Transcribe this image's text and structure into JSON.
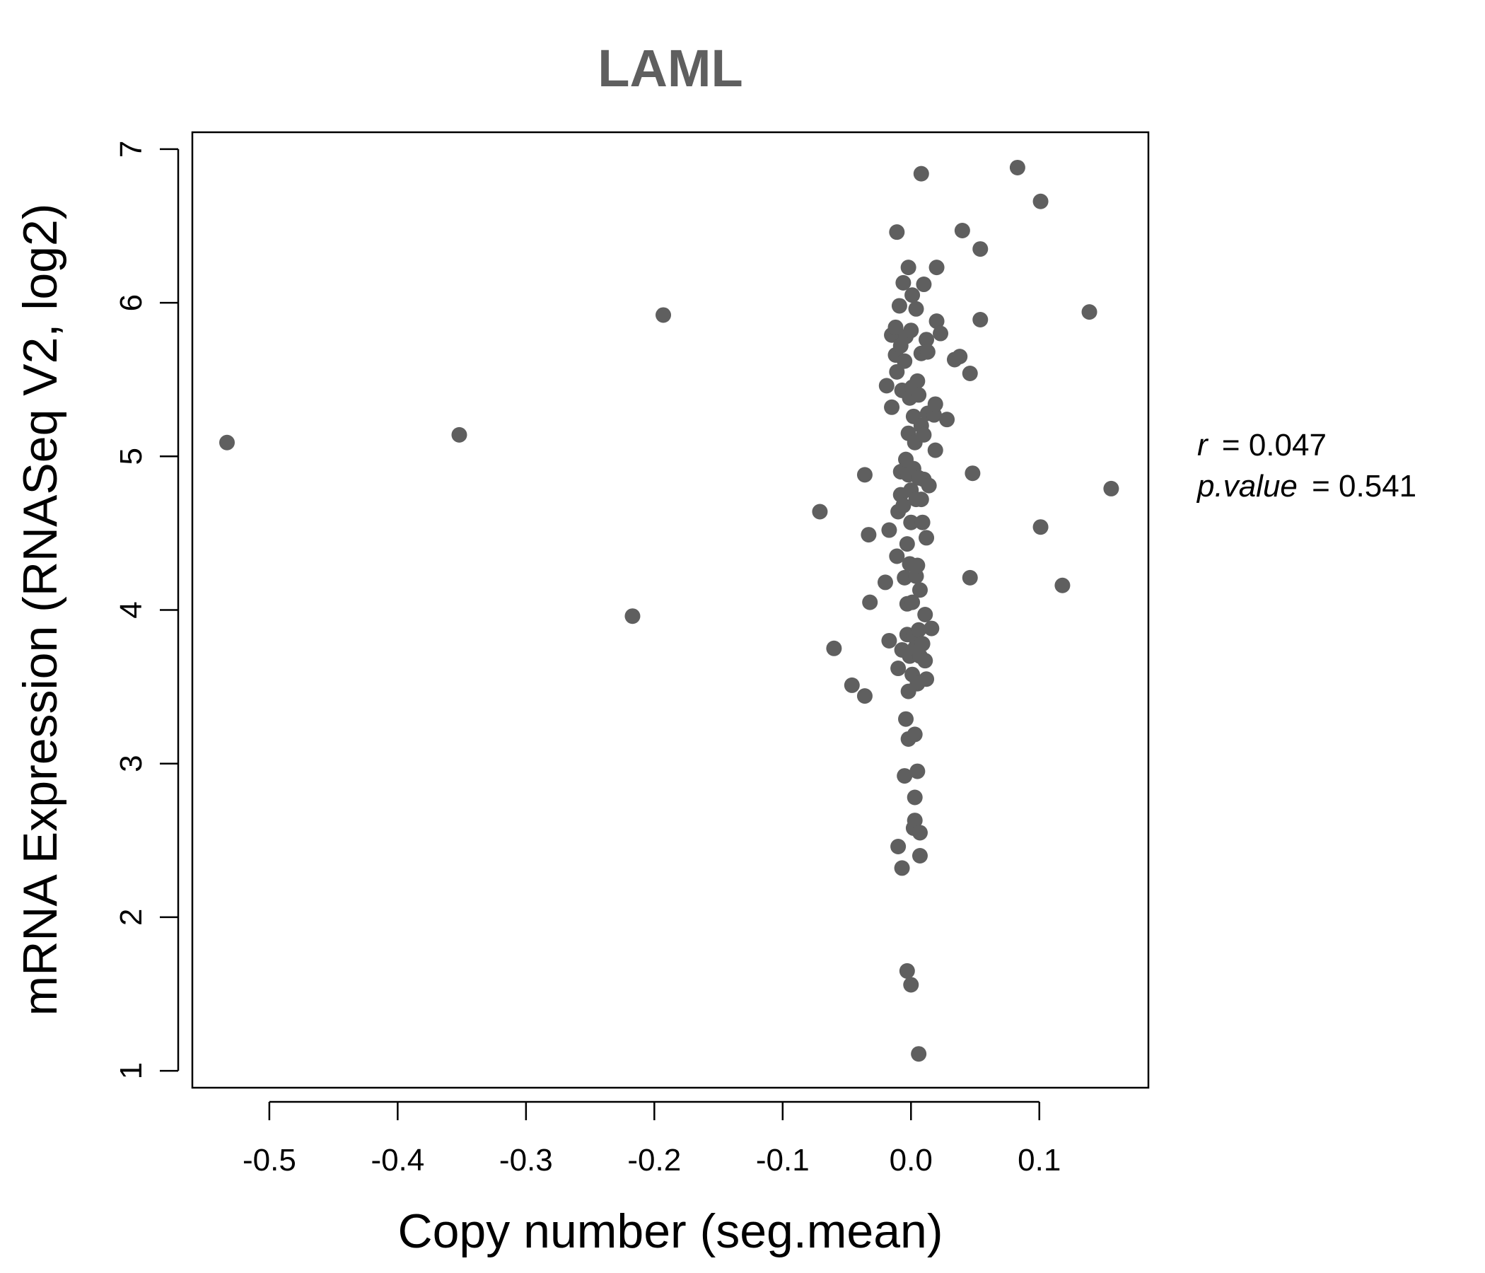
{
  "chart_data": {
    "type": "scatter",
    "title": "LAML",
    "xlabel": "Copy number (seg.mean)",
    "ylabel": "mRNA Expression (RNASeq V2, log2)",
    "xlim": [
      -0.56,
      0.185
    ],
    "ylim": [
      0.89,
      7.11
    ],
    "x_ticks": [
      -0.5,
      -0.4,
      -0.3,
      -0.2,
      -0.1,
      0.0,
      0.1
    ],
    "x_tick_labels": [
      "-0.5",
      "-0.4",
      "-0.3",
      "-0.2",
      "-0.1",
      "0.0",
      "0.1"
    ],
    "y_ticks": [
      1,
      2,
      3,
      4,
      5,
      6,
      7
    ],
    "y_tick_labels": [
      "1",
      "2",
      "3",
      "4",
      "5",
      "6",
      "7"
    ],
    "grid": false,
    "point_color": "#5f5f5f",
    "stats": {
      "r_label": "r",
      "r_value": "0.047",
      "p_label": "p.value",
      "p_value": "0.541"
    },
    "points": [
      {
        "x": -0.533,
        "y": 5.09
      },
      {
        "x": -0.352,
        "y": 5.14
      },
      {
        "x": -0.217,
        "y": 3.96
      },
      {
        "x": -0.193,
        "y": 5.92
      },
      {
        "x": -0.071,
        "y": 4.64
      },
      {
        "x": -0.06,
        "y": 3.75
      },
      {
        "x": -0.046,
        "y": 3.51
      },
      {
        "x": -0.036,
        "y": 3.44
      },
      {
        "x": -0.036,
        "y": 4.88
      },
      {
        "x": -0.033,
        "y": 4.49
      },
      {
        "x": -0.032,
        "y": 4.05
      },
      {
        "x": -0.02,
        "y": 4.18
      },
      {
        "x": -0.019,
        "y": 5.46
      },
      {
        "x": -0.017,
        "y": 3.8
      },
      {
        "x": -0.017,
        "y": 4.52
      },
      {
        "x": -0.015,
        "y": 5.32
      },
      {
        "x": -0.015,
        "y": 5.79
      },
      {
        "x": -0.012,
        "y": 5.84
      },
      {
        "x": -0.012,
        "y": 5.66
      },
      {
        "x": -0.011,
        "y": 4.35
      },
      {
        "x": -0.011,
        "y": 5.55
      },
      {
        "x": -0.011,
        "y": 6.46
      },
      {
        "x": -0.01,
        "y": 4.64
      },
      {
        "x": -0.01,
        "y": 2.46
      },
      {
        "x": -0.01,
        "y": 3.62
      },
      {
        "x": -0.009,
        "y": 5.98
      },
      {
        "x": -0.008,
        "y": 4.75
      },
      {
        "x": -0.008,
        "y": 4.9
      },
      {
        "x": -0.008,
        "y": 5.72
      },
      {
        "x": -0.007,
        "y": 5.43
      },
      {
        "x": -0.007,
        "y": 3.74
      },
      {
        "x": -0.007,
        "y": 2.32
      },
      {
        "x": -0.006,
        "y": 6.13
      },
      {
        "x": -0.006,
        "y": 4.68
      },
      {
        "x": -0.005,
        "y": 5.62
      },
      {
        "x": -0.005,
        "y": 4.21
      },
      {
        "x": -0.005,
        "y": 2.92
      },
      {
        "x": -0.004,
        "y": 4.98
      },
      {
        "x": -0.004,
        "y": 3.29
      },
      {
        "x": -0.004,
        "y": 5.78
      },
      {
        "x": -0.003,
        "y": 4.04
      },
      {
        "x": -0.003,
        "y": 4.43
      },
      {
        "x": -0.003,
        "y": 1.65
      },
      {
        "x": -0.003,
        "y": 3.84
      },
      {
        "x": -0.002,
        "y": 5.15
      },
      {
        "x": -0.002,
        "y": 3.47
      },
      {
        "x": -0.002,
        "y": 3.16
      },
      {
        "x": -0.002,
        "y": 4.88
      },
      {
        "x": -0.002,
        "y": 6.23
      },
      {
        "x": -0.001,
        "y": 5.38
      },
      {
        "x": -0.001,
        "y": 4.3
      },
      {
        "x": -0.001,
        "y": 3.7
      },
      {
        "x": 0.0,
        "y": 5.82
      },
      {
        "x": 0.0,
        "y": 4.57
      },
      {
        "x": 0.0,
        "y": 1.56
      },
      {
        "x": 0.0,
        "y": 4.78
      },
      {
        "x": 0.001,
        "y": 5.45
      },
      {
        "x": 0.001,
        "y": 4.05
      },
      {
        "x": 0.001,
        "y": 3.58
      },
      {
        "x": 0.001,
        "y": 6.05
      },
      {
        "x": 0.002,
        "y": 5.26
      },
      {
        "x": 0.002,
        "y": 3.83
      },
      {
        "x": 0.002,
        "y": 2.58
      },
      {
        "x": 0.002,
        "y": 4.92
      },
      {
        "x": 0.003,
        "y": 3.19
      },
      {
        "x": 0.003,
        "y": 5.09
      },
      {
        "x": 0.003,
        "y": 3.75
      },
      {
        "x": 0.003,
        "y": 2.63
      },
      {
        "x": 0.003,
        "y": 2.78
      },
      {
        "x": 0.004,
        "y": 4.72
      },
      {
        "x": 0.004,
        "y": 5.96
      },
      {
        "x": 0.004,
        "y": 4.22
      },
      {
        "x": 0.005,
        "y": 3.52
      },
      {
        "x": 0.005,
        "y": 2.95
      },
      {
        "x": 0.005,
        "y": 4.29
      },
      {
        "x": 0.005,
        "y": 5.49
      },
      {
        "x": 0.006,
        "y": 3.87
      },
      {
        "x": 0.006,
        "y": 1.11
      },
      {
        "x": 0.006,
        "y": 5.4
      },
      {
        "x": 0.006,
        "y": 4.86
      },
      {
        "x": 0.007,
        "y": 2.4
      },
      {
        "x": 0.007,
        "y": 4.13
      },
      {
        "x": 0.007,
        "y": 3.7
      },
      {
        "x": 0.007,
        "y": 2.55
      },
      {
        "x": 0.008,
        "y": 6.84
      },
      {
        "x": 0.008,
        "y": 5.67
      },
      {
        "x": 0.008,
        "y": 4.72
      },
      {
        "x": 0.008,
        "y": 5.2
      },
      {
        "x": 0.009,
        "y": 3.78
      },
      {
        "x": 0.009,
        "y": 4.57
      },
      {
        "x": 0.01,
        "y": 6.12
      },
      {
        "x": 0.01,
        "y": 4.85
      },
      {
        "x": 0.01,
        "y": 5.14
      },
      {
        "x": 0.011,
        "y": 3.67
      },
      {
        "x": 0.011,
        "y": 3.97
      },
      {
        "x": 0.012,
        "y": 3.55
      },
      {
        "x": 0.012,
        "y": 4.47
      },
      {
        "x": 0.012,
        "y": 5.76
      },
      {
        "x": 0.013,
        "y": 5.28
      },
      {
        "x": 0.013,
        "y": 5.68
      },
      {
        "x": 0.014,
        "y": 4.81
      },
      {
        "x": 0.016,
        "y": 3.88
      },
      {
        "x": 0.018,
        "y": 5.27
      },
      {
        "x": 0.019,
        "y": 5.34
      },
      {
        "x": 0.019,
        "y": 5.04
      },
      {
        "x": 0.02,
        "y": 6.23
      },
      {
        "x": 0.02,
        "y": 5.88
      },
      {
        "x": 0.023,
        "y": 5.8
      },
      {
        "x": 0.028,
        "y": 5.24
      },
      {
        "x": 0.034,
        "y": 5.63
      },
      {
        "x": 0.038,
        "y": 5.65
      },
      {
        "x": 0.04,
        "y": 6.47
      },
      {
        "x": 0.046,
        "y": 5.54
      },
      {
        "x": 0.046,
        "y": 4.21
      },
      {
        "x": 0.048,
        "y": 4.89
      },
      {
        "x": 0.054,
        "y": 5.89
      },
      {
        "x": 0.054,
        "y": 6.35
      },
      {
        "x": 0.083,
        "y": 6.88
      },
      {
        "x": 0.101,
        "y": 6.66
      },
      {
        "x": 0.101,
        "y": 4.54
      },
      {
        "x": 0.118,
        "y": 4.16
      },
      {
        "x": 0.139,
        "y": 5.94
      },
      {
        "x": 0.156,
        "y": 4.79
      }
    ]
  }
}
